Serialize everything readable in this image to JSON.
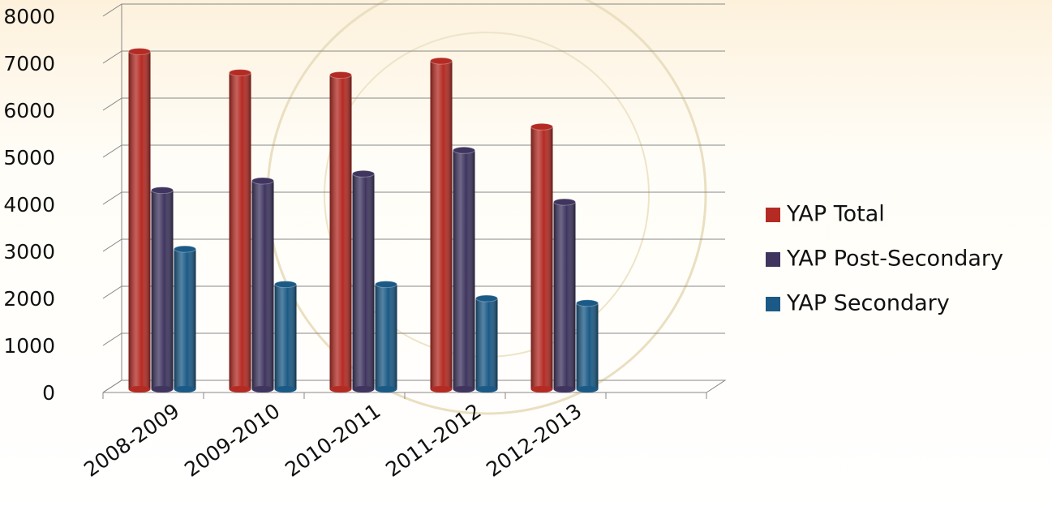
{
  "chart_data": {
    "type": "bar",
    "categories": [
      "2008-2009",
      "2009-2010",
      "2010-2011",
      "2011-2012",
      "2012-2013"
    ],
    "series": [
      {
        "name": "YAP Total",
        "color": "#b42b24",
        "values": [
          7250,
          6800,
          6750,
          7050,
          5650
        ]
      },
      {
        "name": "YAP Post-Secondary",
        "color": "#3f355f",
        "values": [
          4300,
          4500,
          4650,
          5150,
          4050
        ]
      },
      {
        "name": "YAP Secondary",
        "color": "#1b5a86",
        "values": [
          3050,
          2300,
          2300,
          2000,
          1900
        ]
      }
    ],
    "ylim": [
      0,
      8000
    ],
    "yticks": [
      0,
      1000,
      2000,
      3000,
      4000,
      5000,
      6000,
      7000,
      8000
    ],
    "grid": true
  }
}
